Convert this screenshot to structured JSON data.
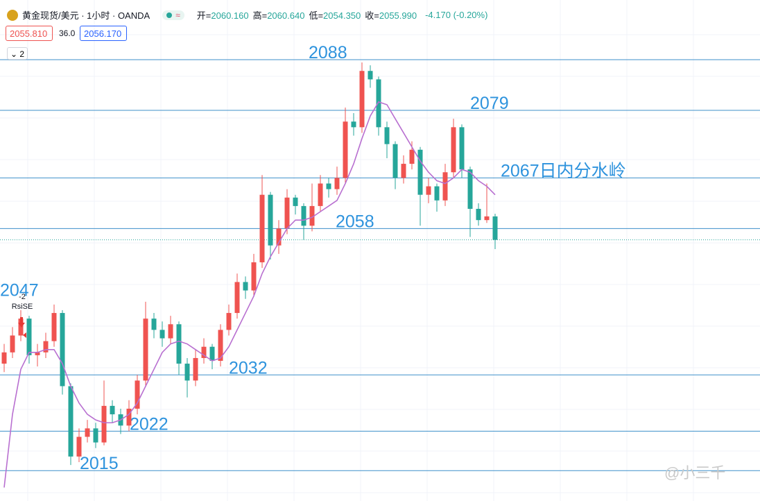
{
  "header": {
    "title": "黄金现货/美元 · 1小时 · OANDA",
    "toggle": "≈",
    "ohlc": [
      {
        "label": "开=",
        "value": "2060.160"
      },
      {
        "label": "高=",
        "value": "2060.640"
      },
      {
        "label": "低=",
        "value": "2054.350"
      },
      {
        "label": "收=",
        "value": "2055.990"
      }
    ],
    "change": "-4.170 (-0.20%)"
  },
  "toolbar": {
    "sell": "2055.810",
    "spread": "36.0",
    "buy": "2056.170",
    "indicators": "2"
  },
  "chart_data": {
    "type": "candlestick",
    "open": [
      2034,
      2036,
      2039,
      2042,
      2035.5,
      2036,
      2038,
      2043,
      2030,
      2017.5,
      2021,
      2022.5,
      2020,
      2026.5,
      2025,
      2023,
      2026,
      2031,
      2042,
      2040,
      2038.5,
      2041,
      2034,
      2031,
      2035,
      2037,
      2034.5,
      2040,
      2043,
      2048.5,
      2047,
      2052,
      2064,
      2055,
      2058,
      2063.5,
      2062,
      2058.5,
      2062,
      2066,
      2065,
      2067,
      2077,
      2076,
      2086,
      2084.5,
      2076,
      2073,
      2067,
      2069.5,
      2072,
      2064,
      2065.5,
      2063,
      2068,
      2076,
      2068.5,
      2061.5,
      2059.5,
      2060.16
    ],
    "high": [
      2037.5,
      2040.5,
      2043.5,
      2042.5,
      2037.5,
      2039.5,
      2044.5,
      2043.5,
      2030.5,
      2022.5,
      2024,
      2023.5,
      2031,
      2027.5,
      2026,
      2027.5,
      2032,
      2045,
      2043,
      2041.5,
      2042.5,
      2041.5,
      2035,
      2036.5,
      2038.5,
      2037.5,
      2041,
      2044.5,
      2050,
      2049.5,
      2053.5,
      2067.5,
      2064.5,
      2059.5,
      2065,
      2064,
      2062.5,
      2066,
      2067.5,
      2067,
      2069,
      2079.5,
      2078.5,
      2087.5,
      2087,
      2085,
      2077,
      2073.5,
      2071,
      2073.5,
      2072.5,
      2067,
      2066,
      2069.5,
      2077.5,
      2076.5,
      2069,
      2062.5,
      2066,
      2060.64
    ],
    "low": [
      2032.5,
      2035,
      2038,
      2034,
      2033.5,
      2035,
      2037,
      2028.5,
      2016,
      2016.5,
      2020,
      2019,
      2019.5,
      2023.5,
      2021.5,
      2022,
      2025,
      2030,
      2038.5,
      2037,
      2037.5,
      2032,
      2028,
      2030,
      2034,
      2033,
      2033.5,
      2039,
      2042,
      2045.5,
      2046,
      2051,
      2052.5,
      2053.5,
      2057,
      2060.5,
      2056,
      2057.5,
      2061,
      2063.5,
      2064,
      2066,
      2074.5,
      2075,
      2083,
      2074.5,
      2070.5,
      2065,
      2066,
      2068.5,
      2058.5,
      2062.5,
      2061,
      2062,
      2067,
      2067,
      2056.5,
      2058.5,
      2059,
      2054.35
    ],
    "close": [
      2036,
      2039,
      2042,
      2035.5,
      2036,
      2038,
      2043,
      2030,
      2017.5,
      2021,
      2022.5,
      2020,
      2026.5,
      2025,
      2023,
      2026,
      2031,
      2042,
      2040,
      2038.5,
      2041,
      2034,
      2031,
      2035,
      2037,
      2034.5,
      2040,
      2043,
      2048.5,
      2047,
      2052,
      2064,
      2055,
      2058,
      2063.5,
      2062,
      2058.5,
      2062,
      2066,
      2065,
      2067,
      2077,
      2076,
      2086,
      2084.5,
      2076,
      2073,
      2067,
      2069.5,
      2072,
      2064,
      2065.5,
      2063,
      2068,
      2076,
      2068.5,
      2061.5,
      2059.5,
      2060.16,
      2055.99
    ],
    "ma": [
      2012,
      2025,
      2033,
      2036,
      2036,
      2036.5,
      2036.5,
      2034,
      2030,
      2027,
      2025,
      2024,
      2023.5,
      2023.5,
      2024,
      2025,
      2027,
      2030,
      2033,
      2036,
      2037.5,
      2038,
      2037.5,
      2036.5,
      2035.5,
      2034.5,
      2035,
      2037,
      2040,
      2043,
      2046,
      2050,
      2053,
      2055.5,
      2058,
      2059.5,
      2059.5,
      2060,
      2061,
      2062,
      2063,
      2066,
      2069.5,
      2074,
      2078,
      2080.5,
      2080,
      2077.5,
      2075,
      2072.5,
      2070,
      2068,
      2066.5,
      2066,
      2067,
      2068.5,
      2068,
      2066.5,
      2065.5,
      2064
    ],
    "ylim": [
      2009.6,
      2098.6
    ],
    "levels": [
      {
        "value": 2088,
        "label": "2088"
      },
      {
        "value": 2079,
        "label": "2079"
      },
      {
        "value": 2067,
        "label": "2067日内分水岭"
      },
      {
        "value": 2058,
        "label": "2058"
      },
      {
        "value": 2032,
        "label": "2032"
      },
      {
        "value": 2022,
        "label": "2022"
      },
      {
        "value": 2015,
        "label": "2015"
      }
    ],
    "annotations": [
      {
        "value": 2047,
        "label": "2047"
      }
    ],
    "signal": {
      "count": "-2",
      "name": "RsiSE"
    },
    "up_color": "#ef5350",
    "down_color": "#26a69a",
    "ma_color": "#b86fd0",
    "level_color": "#3d8fc9"
  },
  "watermark": "@小三千"
}
